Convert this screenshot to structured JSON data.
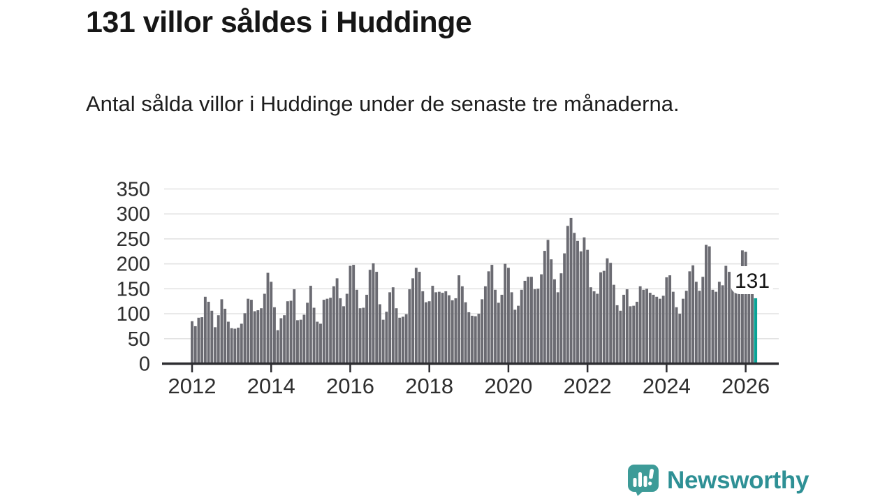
{
  "header": {
    "title": "131 villor såldes i Huddinge",
    "subtitle": "Antal sålda villor i Huddinge under de senaste tre månaderna."
  },
  "chart_data": {
    "type": "bar",
    "title": "131 villor såldes i Huddinge",
    "subtitle": "Antal sålda villor i Huddinge under de senaste tre månaderna.",
    "x_start": "2012-01",
    "frequency": "monthly",
    "values": [
      85,
      75,
      92,
      93,
      134,
      124,
      106,
      73,
      97,
      129,
      110,
      84,
      71,
      70,
      72,
      80,
      101,
      130,
      128,
      105,
      107,
      111,
      140,
      182,
      164,
      113,
      67,
      91,
      97,
      125,
      126,
      149,
      87,
      88,
      98,
      122,
      156,
      112,
      84,
      80,
      128,
      130,
      132,
      155,
      171,
      131,
      115,
      140,
      196,
      198,
      148,
      111,
      112,
      138,
      188,
      201,
      184,
      119,
      88,
      104,
      143,
      153,
      111,
      92,
      94,
      99,
      149,
      171,
      192,
      184,
      145,
      123,
      125,
      156,
      143,
      144,
      142,
      145,
      137,
      127,
      131,
      177,
      155,
      123,
      103,
      96,
      95,
      100,
      129,
      155,
      185,
      198,
      148,
      122,
      138,
      200,
      192,
      143,
      108,
      116,
      148,
      166,
      174,
      174,
      149,
      150,
      179,
      226,
      248,
      209,
      169,
      143,
      181,
      221,
      276,
      292,
      262,
      246,
      225,
      253,
      228,
      153,
      145,
      140,
      183,
      186,
      211,
      202,
      158,
      117,
      106,
      138,
      149,
      115,
      116,
      124,
      155,
      148,
      150,
      142,
      138,
      134,
      130,
      136,
      173,
      177,
      144,
      113,
      100,
      130,
      146,
      185,
      197,
      164,
      146,
      174,
      238,
      235,
      148,
      144,
      164,
      157,
      196,
      184,
      164,
      155,
      170,
      227,
      224,
      148,
      144,
      131
    ],
    "x_tick_labels": [
      "2012",
      "2014",
      "2016",
      "2018",
      "2020",
      "2022",
      "2024",
      "2026"
    ],
    "months_per_tick": 24,
    "y_ticks": [
      0,
      50,
      100,
      150,
      200,
      250,
      300,
      350
    ],
    "ylim": [
      0,
      350
    ],
    "grid": true,
    "legend": false,
    "bar_color": "#6b6b72",
    "highlight_last": true,
    "highlight_color": "#0aa396",
    "grid_color": "#e3e3e3",
    "axis_color": "#2d2d31",
    "annotation": {
      "label": "131",
      "value": 131
    }
  },
  "footer": {
    "brand": "Newsworthy"
  },
  "icons": {
    "logo": "newsworthy-speech-bubble-chart-icon"
  }
}
